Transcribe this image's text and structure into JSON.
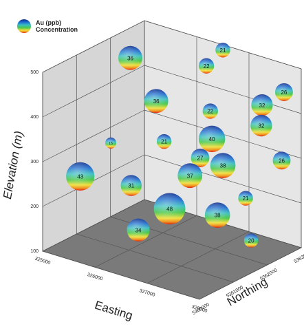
{
  "chart_data": {
    "type": "scatter3d",
    "xlabel": "Easting",
    "ylabel": "Northing",
    "zlabel": "Elevation (m)",
    "xlim": [
      325000,
      328000
    ],
    "xticks": [
      325000,
      326000,
      327000,
      328000
    ],
    "ylim": [
      5360000,
      5363000
    ],
    "yticks": [
      5360000,
      5361000,
      5362000,
      5363000
    ],
    "zlim": [
      100,
      500
    ],
    "zticks": [
      100,
      200,
      300,
      400,
      500
    ],
    "grid": true,
    "series": [
      {
        "name": "Au (ppb) Concentration",
        "easting": [
          325120,
          326380,
          326500,
          325810,
          326650,
          327250,
          327670,
          327430,
          326350,
          327070,
          327040,
          327280,
          327040,
          327820,
          325330,
          325330,
          326110,
          327520,
          326650,
          327370,
          326440,
          327820
        ],
        "northing": [
          5362400,
          5362700,
          5363000,
          5362100,
          5362400,
          5363000,
          5363000,
          5362700,
          5361500,
          5361800,
          5361500,
          5361800,
          5361200,
          5362700,
          5360600,
          5361500,
          5360900,
          5362100,
          5361200,
          5361500,
          5360600,
          5361800
        ],
        "elevation": [
          444,
          460,
          488,
          384,
          380,
          392,
          436,
          364,
          336,
          356,
          324,
          304,
          296,
          300,
          256,
          296,
          252,
          228,
          208,
          208,
          176,
          156
        ],
        "values": [
          36,
          22,
          21,
          36,
          22,
          32,
          26,
          32,
          21,
          40,
          27,
          38,
          37,
          26,
          43,
          15,
          31,
          21,
          48,
          38,
          34,
          20
        ]
      }
    ]
  }
}
